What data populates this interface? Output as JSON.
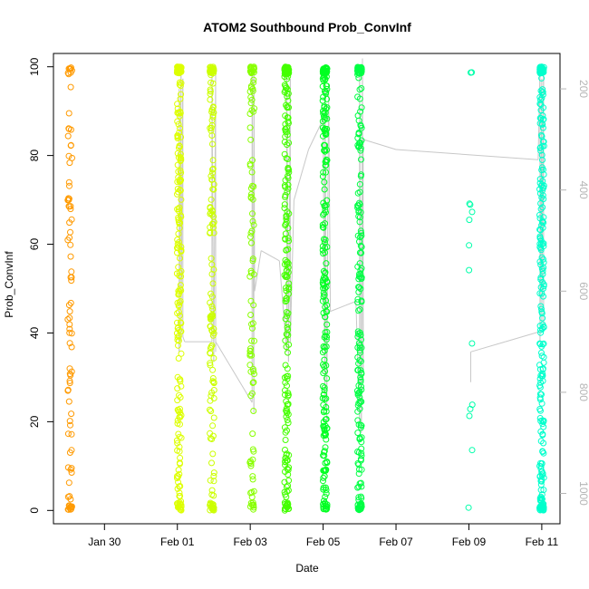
{
  "chart_data": {
    "type": "scatter",
    "title": "ATOM2 Southbound Prob_ConvInf",
    "xlabel": "Date",
    "ylabel": "Prob_ConvInf",
    "xlim_days": [
      28.6,
      42.5
    ],
    "ylim": [
      -3,
      103
    ],
    "y_ticks": [
      0,
      20,
      40,
      60,
      80,
      100
    ],
    "y_tick_labels": [
      "0",
      "20",
      "40",
      "60",
      "80",
      "100"
    ],
    "x_ticks": [
      30,
      32,
      34,
      36,
      38,
      40,
      42
    ],
    "x_tick_labels": [
      "Jan 30",
      "Feb 01",
      "Feb 03",
      "Feb 05",
      "Feb 07",
      "Feb 09",
      "Feb 11"
    ],
    "right_axis": {
      "ticks": [
        200,
        400,
        600,
        800,
        1000
      ],
      "tick_labels": [
        "200",
        "400",
        "600",
        "800",
        "1000"
      ],
      "range_reversed": [
        1060,
        130
      ]
    },
    "grid": false,
    "point_style": "open-circle",
    "series": [
      {
        "day": 29.05,
        "color": "#ff9a00",
        "count": 90
      },
      {
        "day": 32.05,
        "color": "#ddff00",
        "count": 220
      },
      {
        "day": 32.95,
        "color": "#ccff00",
        "count": 160
      },
      {
        "day": 34.05,
        "color": "#88ff00",
        "count": 110
      },
      {
        "day": 35.0,
        "color": "#44ff00",
        "count": 230
      },
      {
        "day": 36.05,
        "color": "#00ff22",
        "count": 230
      },
      {
        "day": 37.0,
        "color": "#00ff44",
        "count": 220
      },
      {
        "day": 40.05,
        "color": "#00ffaa",
        "count": 14
      },
      {
        "day": 42.0,
        "color": "#00ffcc",
        "count": 260
      }
    ],
    "depth_trace": {
      "color": "#c8c8c8",
      "points": [
        [
          32.05,
          200
        ],
        [
          32.05,
          720
        ],
        [
          32.1,
          160
        ],
        [
          32.1,
          700
        ],
        [
          32.15,
          180
        ],
        [
          32.15,
          690
        ],
        [
          32.2,
          700
        ],
        [
          32.95,
          700
        ],
        [
          32.95,
          160
        ],
        [
          33.0,
          740
        ],
        [
          33.05,
          170
        ],
        [
          33.05,
          720
        ],
        [
          33.05,
          700
        ],
        [
          34.05,
          820
        ],
        [
          34.05,
          160
        ],
        [
          34.1,
          840
        ],
        [
          34.1,
          170
        ],
        [
          34.12,
          600
        ],
        [
          34.3,
          520
        ],
        [
          34.8,
          540
        ],
        [
          35.0,
          720
        ],
        [
          35.0,
          160
        ],
        [
          35.05,
          740
        ],
        [
          35.1,
          180
        ],
        [
          35.1,
          700
        ],
        [
          35.2,
          420
        ],
        [
          35.6,
          320
        ],
        [
          36.0,
          260
        ],
        [
          36.05,
          820
        ],
        [
          36.05,
          170
        ],
        [
          36.1,
          860
        ],
        [
          36.15,
          190
        ],
        [
          36.2,
          640
        ],
        [
          36.9,
          620
        ],
        [
          37.0,
          860
        ],
        [
          37.0,
          160
        ],
        [
          37.05,
          880
        ],
        [
          37.08,
          140
        ],
        [
          37.1,
          760
        ],
        [
          37.1,
          300
        ],
        [
          38.0,
          320
        ],
        [
          41.9,
          340
        ],
        [
          41.95,
          160
        ],
        [
          41.95,
          700
        ],
        [
          42.0,
          180
        ],
        [
          42.0,
          660
        ],
        [
          42.05,
          160
        ],
        [
          42.05,
          680
        ],
        [
          41.95,
          680
        ],
        [
          41.0,
          700
        ],
        [
          40.05,
          720
        ],
        [
          40.05,
          780
        ]
      ]
    }
  }
}
